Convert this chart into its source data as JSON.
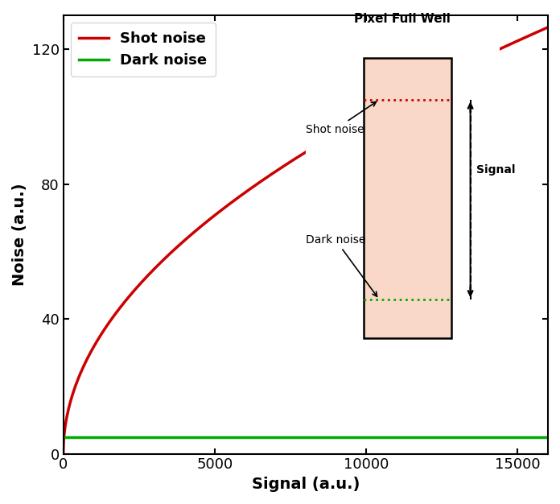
{
  "title": "",
  "xlabel": "Signal (a.u.)",
  "ylabel": "Noise (a.u.)",
  "xlim": [
    0,
    16000
  ],
  "ylim": [
    0,
    130
  ],
  "xticks": [
    0,
    5000,
    10000,
    15000
  ],
  "yticks": [
    0,
    40,
    80,
    120
  ],
  "shot_noise_color": "#cc0000",
  "dark_noise_color": "#00aa00",
  "dark_noise_value": 5,
  "signal_max": 16000,
  "legend_shot": "Shot noise",
  "legend_dark": "Dark noise",
  "inset_title": "Pixel Full Well",
  "inset_shot_label": "Shot noise",
  "inset_dark_label": "Dark noise",
  "inset_signal_label": "Signal",
  "inset_fill_color": "#f9d8c8",
  "inset_red_dashed": "#cc0000",
  "inset_green_dashed": "#00aa00",
  "line_width": 2.5
}
